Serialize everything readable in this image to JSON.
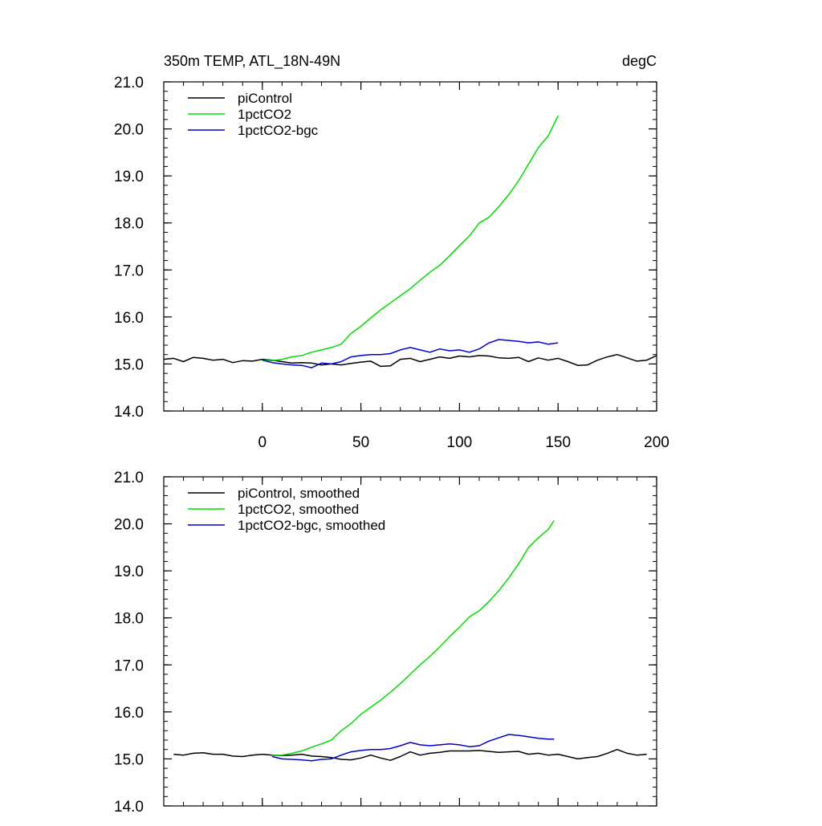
{
  "chart_data": [
    {
      "type": "line",
      "title_left": "350m TEMP, ATL_18N-49N",
      "title_right": "degC",
      "xlim": [
        -50,
        200
      ],
      "ylim": [
        14.0,
        21.0
      ],
      "x_ticks": [
        0,
        50,
        100,
        150,
        200
      ],
      "x_tick_labels": [
        "0",
        "50",
        "100",
        "150",
        "200"
      ],
      "y_ticks": [
        14.0,
        15.0,
        16.0,
        17.0,
        18.0,
        19.0,
        20.0,
        21.0
      ],
      "y_tick_labels": [
        "14.0",
        "15.0",
        "16.0",
        "17.0",
        "18.0",
        "19.0",
        "20.0",
        "21.0"
      ],
      "legend_position": "top-left",
      "series": [
        {
          "name": "piControl",
          "color": "#000000",
          "x": [
            -50,
            -45,
            -40,
            -35,
            -30,
            -25,
            -20,
            -15,
            -10,
            -5,
            0,
            5,
            10,
            15,
            20,
            25,
            30,
            35,
            40,
            45,
            50,
            55,
            60,
            65,
            70,
            75,
            80,
            85,
            90,
            95,
            100,
            105,
            110,
            115,
            120,
            125,
            130,
            135,
            140,
            145,
            150,
            155,
            160,
            165,
            170,
            175,
            180,
            185,
            190,
            195,
            200
          ],
          "values": [
            15.1,
            15.12,
            15.05,
            15.14,
            15.12,
            15.08,
            15.1,
            15.03,
            15.07,
            15.06,
            15.1,
            15.08,
            15.05,
            15.02,
            15.03,
            15.02,
            14.98,
            15.0,
            14.98,
            15.01,
            15.04,
            15.06,
            14.95,
            14.96,
            15.1,
            15.12,
            15.05,
            15.1,
            15.15,
            15.12,
            15.17,
            15.15,
            15.18,
            15.17,
            15.13,
            15.12,
            15.14,
            15.05,
            15.13,
            15.08,
            15.12,
            15.05,
            14.97,
            14.98,
            15.08,
            15.15,
            15.2,
            15.13,
            15.06,
            15.08,
            15.18
          ]
        },
        {
          "name": "1pctCO2",
          "color": "#00dd00",
          "x": [
            0,
            5,
            10,
            15,
            20,
            25,
            30,
            35,
            40,
            45,
            50,
            55,
            60,
            65,
            70,
            75,
            80,
            85,
            90,
            95,
            100,
            105,
            110,
            115,
            120,
            125,
            130,
            135,
            140,
            145,
            150
          ],
          "values": [
            15.08,
            15.07,
            15.1,
            15.15,
            15.18,
            15.25,
            15.3,
            15.35,
            15.42,
            15.65,
            15.8,
            15.98,
            16.15,
            16.3,
            16.45,
            16.6,
            16.78,
            16.95,
            17.1,
            17.3,
            17.52,
            17.72,
            18.0,
            18.12,
            18.35,
            18.6,
            18.9,
            19.25,
            19.6,
            19.85,
            20.28
          ]
        },
        {
          "name": "1pctCO2-bgc",
          "color": "#0000cc",
          "x": [
            0,
            5,
            10,
            15,
            20,
            25,
            30,
            35,
            40,
            45,
            50,
            55,
            60,
            65,
            70,
            75,
            80,
            85,
            90,
            95,
            100,
            105,
            110,
            115,
            120,
            125,
            130,
            135,
            140,
            145,
            150
          ],
          "values": [
            15.08,
            15.03,
            15.0,
            14.98,
            14.97,
            14.92,
            15.02,
            15.0,
            15.05,
            15.15,
            15.18,
            15.2,
            15.2,
            15.22,
            15.3,
            15.35,
            15.3,
            15.25,
            15.32,
            15.28,
            15.3,
            15.25,
            15.32,
            15.45,
            15.52,
            15.5,
            15.48,
            15.45,
            15.47,
            15.42,
            15.45
          ]
        }
      ]
    },
    {
      "type": "line",
      "xlim": [
        -50,
        200
      ],
      "ylim": [
        14.0,
        21.0
      ],
      "x_ticks": [
        0,
        50,
        100,
        150,
        200
      ],
      "y_ticks": [
        14.0,
        15.0,
        16.0,
        17.0,
        18.0,
        19.0,
        20.0,
        21.0
      ],
      "y_tick_labels": [
        "14.0",
        "15.0",
        "16.0",
        "17.0",
        "18.0",
        "19.0",
        "20.0",
        "21.0"
      ],
      "legend_position": "top-left",
      "series": [
        {
          "name": "piControl, smoothed",
          "color": "#000000",
          "x": [
            -45,
            -40,
            -35,
            -30,
            -25,
            -20,
            -15,
            -10,
            -5,
            0,
            5,
            10,
            15,
            20,
            25,
            30,
            35,
            40,
            45,
            50,
            55,
            60,
            65,
            70,
            75,
            80,
            85,
            90,
            95,
            100,
            105,
            110,
            115,
            120,
            125,
            130,
            135,
            140,
            145,
            150,
            155,
            160,
            165,
            170,
            175,
            180,
            185,
            190,
            195
          ],
          "values": [
            15.1,
            15.08,
            15.12,
            15.13,
            15.1,
            15.1,
            15.06,
            15.05,
            15.08,
            15.1,
            15.08,
            15.07,
            15.08,
            15.1,
            15.06,
            15.05,
            15.03,
            14.99,
            14.98,
            15.02,
            15.08,
            15.02,
            14.97,
            15.05,
            15.15,
            15.08,
            15.12,
            15.14,
            15.17,
            15.17,
            15.17,
            15.18,
            15.16,
            15.14,
            15.15,
            15.16,
            15.1,
            15.12,
            15.08,
            15.1,
            15.05,
            15.0,
            15.03,
            15.05,
            15.12,
            15.2,
            15.12,
            15.08,
            15.1
          ]
        },
        {
          "name": "1pctCO2, smoothed",
          "color": "#00dd00",
          "x": [
            5,
            10,
            15,
            20,
            25,
            30,
            35,
            40,
            45,
            50,
            55,
            60,
            65,
            70,
            75,
            80,
            85,
            90,
            95,
            100,
            105,
            110,
            115,
            120,
            125,
            130,
            135,
            140,
            145,
            148
          ],
          "values": [
            15.07,
            15.08,
            15.12,
            15.17,
            15.25,
            15.32,
            15.4,
            15.6,
            15.75,
            15.95,
            16.1,
            16.25,
            16.42,
            16.6,
            16.8,
            17.0,
            17.18,
            17.38,
            17.6,
            17.8,
            18.02,
            18.15,
            18.35,
            18.58,
            18.85,
            19.15,
            19.5,
            19.7,
            19.88,
            20.07
          ]
        },
        {
          "name": "1pctCO2-bgc, smoothed",
          "color": "#0000cc",
          "x": [
            5,
            10,
            15,
            20,
            25,
            30,
            35,
            40,
            45,
            50,
            55,
            60,
            65,
            70,
            75,
            80,
            85,
            90,
            95,
            100,
            105,
            110,
            115,
            120,
            125,
            130,
            135,
            140,
            145,
            148
          ],
          "values": [
            15.05,
            15.0,
            14.99,
            14.98,
            14.96,
            14.99,
            15.0,
            15.08,
            15.15,
            15.18,
            15.2,
            15.2,
            15.22,
            15.28,
            15.35,
            15.3,
            15.28,
            15.3,
            15.32,
            15.3,
            15.26,
            15.28,
            15.38,
            15.45,
            15.52,
            15.5,
            15.47,
            15.44,
            15.42,
            15.42
          ]
        }
      ]
    }
  ]
}
